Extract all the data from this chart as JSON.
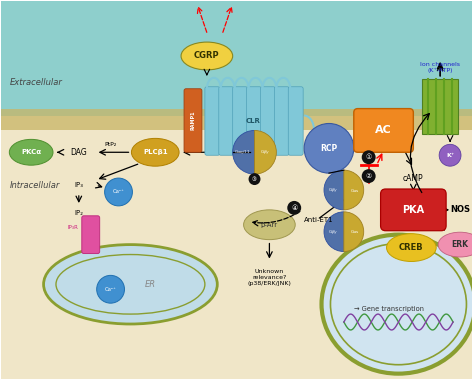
{
  "bg_extracellular": "#8ecfcc",
  "bg_intracellular": "#f0e6c8",
  "membrane_color": "#c8b566",
  "labels": {
    "extracellular": "Extracellular",
    "intracellular": "Intracellular",
    "CGRP": "CGRP",
    "RAMP1": "RAMP1",
    "CLR": "CLR",
    "AC": "AC",
    "RCP": "RCP",
    "PKA": "PKA",
    "NOS": "NOS",
    "ERK": "ERK",
    "CREB": "CREB",
    "cAMP": "cAMP",
    "DAG": "DAG",
    "PIP2": "PtP₂",
    "PLCb1": "PLCβ1",
    "PKCa": "PKCα",
    "IP3": "IP₃",
    "IP2": "IP₂",
    "IP3R": "IP₃R",
    "ER": "ER",
    "Ca2": "Ca²⁺",
    "bArr": "β-Arr",
    "AntiET1": "Anti-ET1",
    "IonChannels": "Ion channels\n(K⁺-ATP)",
    "K": "K⁺",
    "GeneTranscription": "Gene transcription",
    "UnknownRelevance": "Unknown\nrelevance?\n(p38/ERK/JNK)"
  },
  "colors": {
    "CGRP_oval": "#f0d040",
    "RAMP1": "#d06020",
    "CLR_helix": "#80c8d8",
    "AC": "#f08820",
    "RCP": "#6080c0",
    "PKA": "#cc2020",
    "ERK": "#f090b0",
    "CREB": "#e8c020",
    "PKCa": "#70b050",
    "PLCb1": "#d0a020",
    "Gaq11": "#5070a8",
    "Gby": "#c8a830",
    "Gas": "#c8a830",
    "Gbs": "#5070a8",
    "bArr": "#c8c078",
    "IonChannel": "#80b030",
    "K_circle": "#9060c0",
    "Ca2_circle": "#4090d0",
    "IP3R": "#e050a0",
    "ER_fill": "#c0dce8",
    "nucleus_fill": "#d0e4f0",
    "dna1": "#409840",
    "dna2": "#8040a0"
  }
}
